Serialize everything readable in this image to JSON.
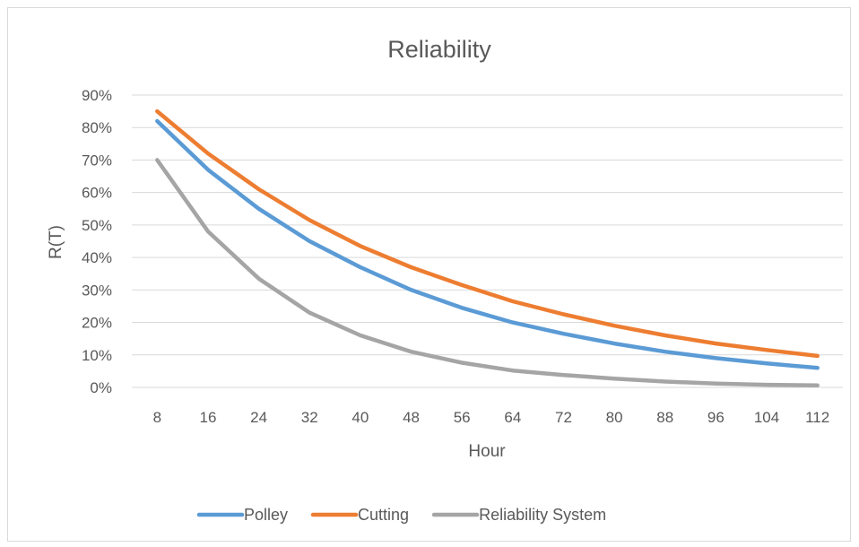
{
  "chart_data": {
    "type": "line",
    "title": "Reliability",
    "xlabel": "Hour",
    "ylabel": "R(T)",
    "categories": [
      "8",
      "16",
      "24",
      "32",
      "40",
      "48",
      "56",
      "64",
      "72",
      "80",
      "88",
      "96",
      "104",
      "112"
    ],
    "y_tick_labels": [
      "0%",
      "10%",
      "20%",
      "30%",
      "40%",
      "50%",
      "60%",
      "70%",
      "80%",
      "90%"
    ],
    "ylim": [
      0,
      0.9
    ],
    "y_format": "percent",
    "grid": true,
    "legend_position": "bottom",
    "series": [
      {
        "name": "Polley",
        "color": "#5b9bd5",
        "values": [
          0.82,
          0.67,
          0.55,
          0.45,
          0.37,
          0.3,
          0.245,
          0.2,
          0.165,
          0.135,
          0.11,
          0.09,
          0.074,
          0.06
        ]
      },
      {
        "name": "Cutting",
        "color": "#ed7d31",
        "values": [
          0.85,
          0.72,
          0.61,
          0.515,
          0.435,
          0.37,
          0.315,
          0.265,
          0.225,
          0.19,
          0.16,
          0.135,
          0.115,
          0.097
        ]
      },
      {
        "name": "Reliability System",
        "color": "#a5a5a5",
        "values": [
          0.7,
          0.48,
          0.335,
          0.23,
          0.16,
          0.11,
          0.076,
          0.052,
          0.038,
          0.027,
          0.018,
          0.012,
          0.008,
          0.006
        ]
      }
    ]
  }
}
